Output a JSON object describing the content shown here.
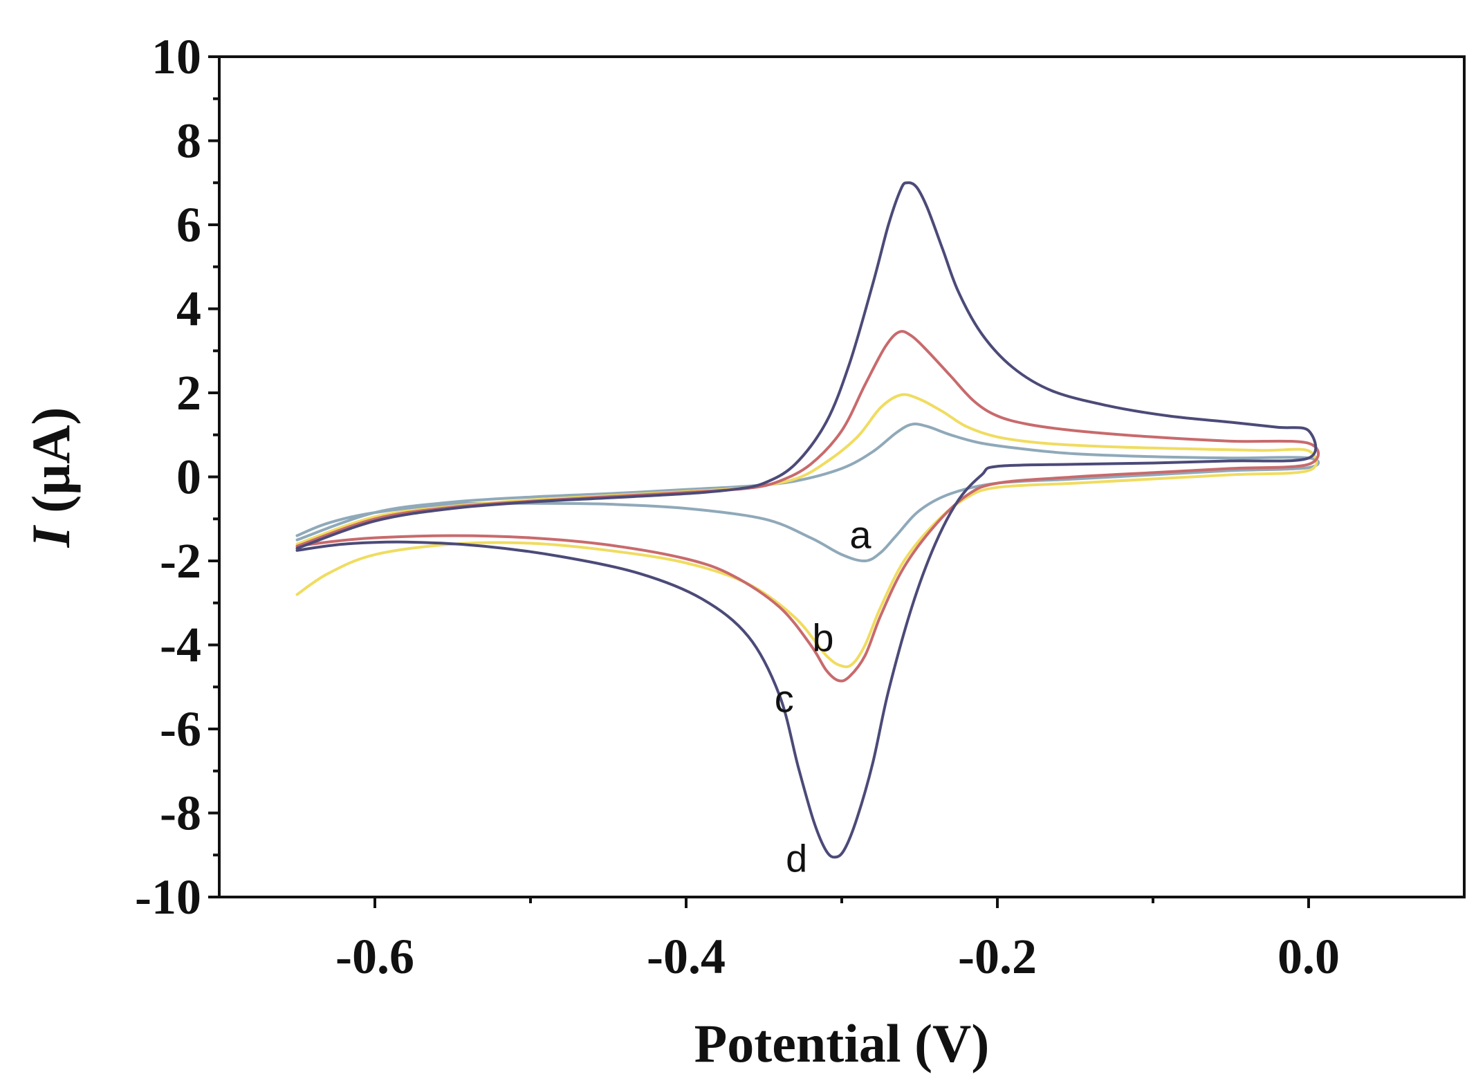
{
  "chart_data": {
    "type": "line",
    "title": "",
    "xlabel": "Potential (V)",
    "ylabel_prefix": "I",
    "ylabel_suffix": " (µA)",
    "xlim": [
      -0.7,
      0.1
    ],
    "ylim": [
      -10,
      10
    ],
    "x_ticks": [
      -0.6,
      -0.4,
      -0.2,
      0.0
    ],
    "x_tick_labels": [
      "-0.6",
      "-0.4",
      "-0.2",
      "0.0"
    ],
    "x_minor_ticks": [
      -0.5,
      -0.3,
      -0.1
    ],
    "y_ticks": [
      -10,
      -8,
      -6,
      -4,
      -2,
      0,
      2,
      4,
      6,
      8,
      10
    ],
    "y_tick_labels": [
      "-10",
      "-8",
      "-6",
      "-4",
      "-2",
      "0",
      "2",
      "4",
      "6",
      "8",
      "10"
    ],
    "grid": false,
    "series": [
      {
        "name": "a",
        "color": "#8fa9b9",
        "label_at": [
          -0.288,
          -1.4
        ],
        "forward": [
          [
            -0.65,
            -1.5
          ],
          [
            -0.6,
            -0.85
          ],
          [
            -0.55,
            -0.6
          ],
          [
            -0.5,
            -0.48
          ],
          [
            -0.45,
            -0.4
          ],
          [
            -0.4,
            -0.3
          ],
          [
            -0.36,
            -0.22
          ],
          [
            -0.33,
            -0.1
          ],
          [
            -0.3,
            0.2
          ],
          [
            -0.28,
            0.6
          ],
          [
            -0.265,
            1.05
          ],
          [
            -0.255,
            1.25
          ],
          [
            -0.245,
            1.2
          ],
          [
            -0.23,
            1.0
          ],
          [
            -0.21,
            0.8
          ],
          [
            -0.18,
            0.65
          ],
          [
            -0.15,
            0.55
          ],
          [
            -0.1,
            0.48
          ],
          [
            -0.05,
            0.45
          ],
          [
            0.0,
            0.45
          ]
        ],
        "reverse": [
          [
            0.0,
            0.22
          ],
          [
            -0.05,
            0.15
          ],
          [
            -0.1,
            0.05
          ],
          [
            -0.15,
            -0.05
          ],
          [
            -0.2,
            -0.15
          ],
          [
            -0.23,
            -0.4
          ],
          [
            -0.25,
            -0.8
          ],
          [
            -0.265,
            -1.4
          ],
          [
            -0.275,
            -1.8
          ],
          [
            -0.285,
            -2.0
          ],
          [
            -0.3,
            -1.85
          ],
          [
            -0.32,
            -1.45
          ],
          [
            -0.35,
            -1.0
          ],
          [
            -0.4,
            -0.75
          ],
          [
            -0.45,
            -0.65
          ],
          [
            -0.5,
            -0.63
          ],
          [
            -0.55,
            -0.65
          ],
          [
            -0.6,
            -0.85
          ],
          [
            -0.63,
            -1.1
          ],
          [
            -0.65,
            -1.4
          ]
        ]
      },
      {
        "name": "b",
        "color": "#f0dc60",
        "label_at": [
          -0.312,
          -3.85
        ],
        "forward": [
          [
            -0.65,
            -1.6
          ],
          [
            -0.6,
            -0.95
          ],
          [
            -0.55,
            -0.7
          ],
          [
            -0.5,
            -0.55
          ],
          [
            -0.45,
            -0.45
          ],
          [
            -0.4,
            -0.35
          ],
          [
            -0.36,
            -0.25
          ],
          [
            -0.33,
            -0.05
          ],
          [
            -0.31,
            0.35
          ],
          [
            -0.29,
            0.95
          ],
          [
            -0.275,
            1.65
          ],
          [
            -0.262,
            1.95
          ],
          [
            -0.25,
            1.85
          ],
          [
            -0.235,
            1.55
          ],
          [
            -0.22,
            1.2
          ],
          [
            -0.2,
            0.95
          ],
          [
            -0.17,
            0.8
          ],
          [
            -0.13,
            0.72
          ],
          [
            -0.08,
            0.67
          ],
          [
            -0.03,
            0.63
          ],
          [
            0.0,
            0.62
          ]
        ],
        "reverse": [
          [
            0.0,
            0.15
          ],
          [
            -0.05,
            0.05
          ],
          [
            -0.1,
            -0.05
          ],
          [
            -0.15,
            -0.15
          ],
          [
            -0.2,
            -0.25
          ],
          [
            -0.22,
            -0.5
          ],
          [
            -0.24,
            -1.1
          ],
          [
            -0.26,
            -2.0
          ],
          [
            -0.275,
            -3.1
          ],
          [
            -0.285,
            -4.0
          ],
          [
            -0.293,
            -4.45
          ],
          [
            -0.3,
            -4.5
          ],
          [
            -0.31,
            -4.25
          ],
          [
            -0.33,
            -3.35
          ],
          [
            -0.36,
            -2.55
          ],
          [
            -0.4,
            -2.05
          ],
          [
            -0.45,
            -1.75
          ],
          [
            -0.5,
            -1.58
          ],
          [
            -0.55,
            -1.6
          ],
          [
            -0.6,
            -1.85
          ],
          [
            -0.63,
            -2.3
          ],
          [
            -0.65,
            -2.8
          ]
        ]
      },
      {
        "name": "c",
        "color": "#c86a6c",
        "label_at": [
          -0.337,
          -5.3
        ],
        "forward": [
          [
            -0.65,
            -1.65
          ],
          [
            -0.6,
            -1.0
          ],
          [
            -0.55,
            -0.72
          ],
          [
            -0.5,
            -0.58
          ],
          [
            -0.45,
            -0.47
          ],
          [
            -0.4,
            -0.37
          ],
          [
            -0.36,
            -0.27
          ],
          [
            -0.34,
            -0.1
          ],
          [
            -0.32,
            0.3
          ],
          [
            -0.3,
            1.1
          ],
          [
            -0.285,
            2.2
          ],
          [
            -0.272,
            3.1
          ],
          [
            -0.263,
            3.45
          ],
          [
            -0.255,
            3.35
          ],
          [
            -0.245,
            3.0
          ],
          [
            -0.23,
            2.4
          ],
          [
            -0.215,
            1.8
          ],
          [
            -0.2,
            1.45
          ],
          [
            -0.18,
            1.25
          ],
          [
            -0.15,
            1.1
          ],
          [
            -0.1,
            0.95
          ],
          [
            -0.05,
            0.85
          ],
          [
            0.0,
            0.8
          ]
        ],
        "reverse": [
          [
            0.0,
            0.3
          ],
          [
            -0.05,
            0.2
          ],
          [
            -0.1,
            0.1
          ],
          [
            -0.15,
            0.0
          ],
          [
            -0.2,
            -0.15
          ],
          [
            -0.22,
            -0.45
          ],
          [
            -0.24,
            -1.15
          ],
          [
            -0.26,
            -2.15
          ],
          [
            -0.275,
            -3.3
          ],
          [
            -0.285,
            -4.25
          ],
          [
            -0.295,
            -4.75
          ],
          [
            -0.302,
            -4.85
          ],
          [
            -0.31,
            -4.6
          ],
          [
            -0.32,
            -4.0
          ],
          [
            -0.34,
            -3.1
          ],
          [
            -0.37,
            -2.35
          ],
          [
            -0.4,
            -1.95
          ],
          [
            -0.45,
            -1.62
          ],
          [
            -0.5,
            -1.45
          ],
          [
            -0.55,
            -1.4
          ],
          [
            -0.6,
            -1.45
          ],
          [
            -0.63,
            -1.55
          ],
          [
            -0.65,
            -1.65
          ]
        ]
      },
      {
        "name": "d",
        "color": "#4b4a78",
        "label_at": [
          -0.329,
          -9.1
        ],
        "forward": [
          [
            -0.65,
            -1.7
          ],
          [
            -0.6,
            -1.05
          ],
          [
            -0.55,
            -0.75
          ],
          [
            -0.5,
            -0.6
          ],
          [
            -0.45,
            -0.5
          ],
          [
            -0.4,
            -0.4
          ],
          [
            -0.37,
            -0.3
          ],
          [
            -0.35,
            -0.15
          ],
          [
            -0.33,
            0.3
          ],
          [
            -0.31,
            1.3
          ],
          [
            -0.295,
            2.7
          ],
          [
            -0.28,
            4.6
          ],
          [
            -0.27,
            6.0
          ],
          [
            -0.262,
            6.85
          ],
          [
            -0.258,
            7.0
          ],
          [
            -0.252,
            6.9
          ],
          [
            -0.245,
            6.4
          ],
          [
            -0.235,
            5.4
          ],
          [
            -0.225,
            4.4
          ],
          [
            -0.21,
            3.4
          ],
          [
            -0.19,
            2.6
          ],
          [
            -0.165,
            2.05
          ],
          [
            -0.13,
            1.7
          ],
          [
            -0.09,
            1.45
          ],
          [
            -0.05,
            1.3
          ],
          [
            -0.02,
            1.18
          ],
          [
            0.0,
            1.1
          ]
        ],
        "reverse": [
          [
            0.0,
            0.45
          ],
          [
            -0.05,
            0.38
          ],
          [
            -0.1,
            0.33
          ],
          [
            -0.15,
            0.3
          ],
          [
            -0.2,
            0.25
          ],
          [
            -0.21,
            0.05
          ],
          [
            -0.225,
            -0.55
          ],
          [
            -0.24,
            -1.6
          ],
          [
            -0.255,
            -3.1
          ],
          [
            -0.27,
            -5.1
          ],
          [
            -0.28,
            -6.8
          ],
          [
            -0.29,
            -8.1
          ],
          [
            -0.298,
            -8.85
          ],
          [
            -0.304,
            -9.05
          ],
          [
            -0.31,
            -8.9
          ],
          [
            -0.318,
            -8.2
          ],
          [
            -0.328,
            -6.9
          ],
          [
            -0.34,
            -5.2
          ],
          [
            -0.36,
            -3.8
          ],
          [
            -0.39,
            -2.9
          ],
          [
            -0.43,
            -2.3
          ],
          [
            -0.48,
            -1.9
          ],
          [
            -0.53,
            -1.65
          ],
          [
            -0.58,
            -1.55
          ],
          [
            -0.62,
            -1.6
          ],
          [
            -0.65,
            -1.75
          ]
        ]
      }
    ]
  }
}
